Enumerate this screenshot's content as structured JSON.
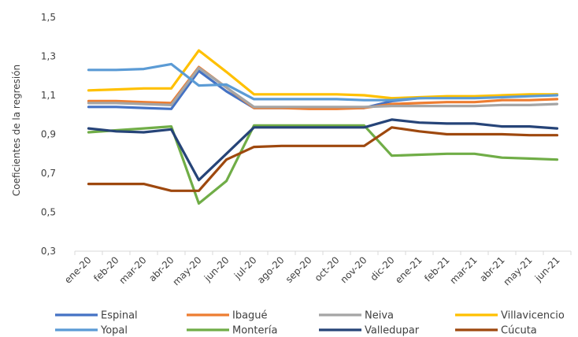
{
  "chart_data": {
    "type": "line",
    "title": "",
    "xlabel": "",
    "ylabel": "Coeficientes de la regresión",
    "ylim": [
      0.3,
      1.5
    ],
    "yticks": [
      "0,3",
      "0,5",
      "0,7",
      "0,9",
      "1,1",
      "1,3",
      "1,5"
    ],
    "grid": false,
    "legend_position": "bottom",
    "categories": [
      "ene-20",
      "feb-20",
      "mar-20",
      "abr-20",
      "may-20",
      "jun-20",
      "jul-20",
      "ago-20",
      "sep-20",
      "oct-20",
      "nov-20",
      "dic-20",
      "ene-21",
      "feb-21",
      "mar-21",
      "abr-21",
      "may-21",
      "jun-21"
    ],
    "series": [
      {
        "name": "Espinal",
        "color": "#4472C4",
        "values": [
          1.04,
          1.04,
          1.035,
          1.03,
          1.225,
          1.12,
          1.035,
          1.035,
          1.035,
          1.035,
          1.035,
          1.07,
          1.085,
          1.09,
          1.09,
          1.095,
          1.1,
          1.105
        ]
      },
      {
        "name": "Ibagué",
        "color": "#ED7D31",
        "values": [
          1.07,
          1.07,
          1.065,
          1.06,
          1.245,
          1.14,
          1.035,
          1.035,
          1.03,
          1.03,
          1.035,
          1.055,
          1.06,
          1.065,
          1.065,
          1.075,
          1.075,
          1.08
        ]
      },
      {
        "name": "Neiva",
        "color": "#A5A5A5",
        "values": [
          1.06,
          1.06,
          1.055,
          1.05,
          1.24,
          1.14,
          1.04,
          1.04,
          1.04,
          1.04,
          1.04,
          1.045,
          1.045,
          1.045,
          1.045,
          1.05,
          1.05,
          1.055
        ]
      },
      {
        "name": "Villavicencio",
        "color": "#FFC000",
        "values": [
          1.125,
          1.13,
          1.135,
          1.135,
          1.33,
          1.22,
          1.105,
          1.105,
          1.105,
          1.105,
          1.1,
          1.085,
          1.09,
          1.095,
          1.095,
          1.1,
          1.105,
          1.105
        ]
      },
      {
        "name": "Yopal",
        "color": "#5B9BD5",
        "values": [
          1.23,
          1.23,
          1.235,
          1.26,
          1.15,
          1.155,
          1.08,
          1.08,
          1.08,
          1.08,
          1.075,
          1.075,
          1.085,
          1.085,
          1.085,
          1.09,
          1.095,
          1.1
        ]
      },
      {
        "name": "Montería",
        "color": "#70AD47",
        "values": [
          0.91,
          0.92,
          0.93,
          0.94,
          0.545,
          0.66,
          0.945,
          0.945,
          0.945,
          0.945,
          0.945,
          0.79,
          0.795,
          0.8,
          0.8,
          0.78,
          0.775,
          0.77
        ]
      },
      {
        "name": "Valledupar",
        "color": "#264478",
        "values": [
          0.93,
          0.915,
          0.91,
          0.925,
          0.665,
          0.8,
          0.935,
          0.935,
          0.935,
          0.935,
          0.935,
          0.975,
          0.96,
          0.955,
          0.955,
          0.94,
          0.94,
          0.93
        ]
      },
      {
        "name": "Cúcuta",
        "color": "#9E480E",
        "values": [
          0.645,
          0.645,
          0.645,
          0.61,
          0.61,
          0.77,
          0.835,
          0.84,
          0.84,
          0.84,
          0.84,
          0.935,
          0.915,
          0.9,
          0.9,
          0.9,
          0.895,
          0.895
        ]
      }
    ]
  }
}
